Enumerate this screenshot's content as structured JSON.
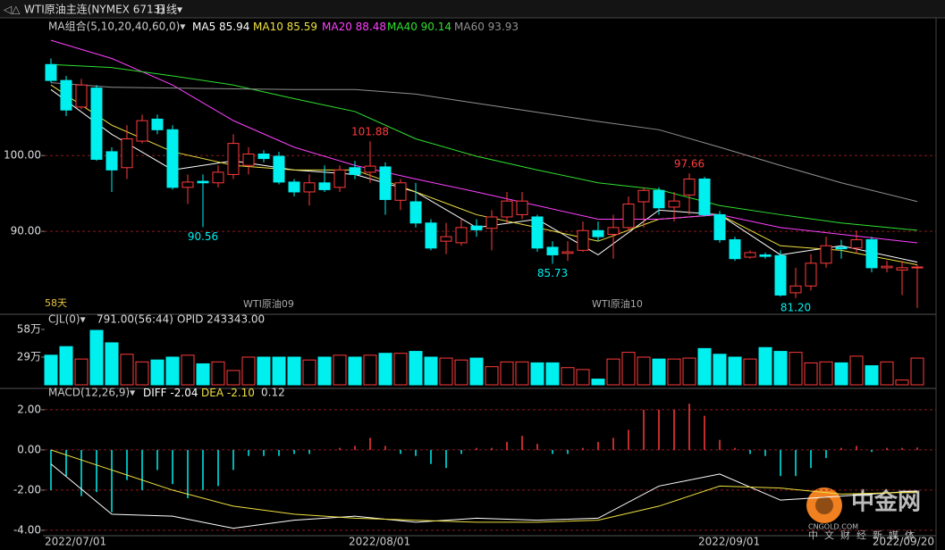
{
  "header": {
    "title": "WTI原油主连(NYMEX 6713)",
    "period": "日线▾"
  },
  "watermark": {
    "brand": "中金网",
    "site": "CNGOLD.COM",
    "slogan": "中文财经新媒体"
  },
  "chart_data": [
    {
      "type": "candlestick",
      "title": "MA组合(5,10,20,40,60,0)▾",
      "categories": [
        "2022/07/01",
        null,
        null,
        null,
        null,
        null,
        null,
        null,
        null,
        null,
        null,
        null,
        null,
        null,
        null,
        null,
        null,
        null,
        null,
        null,
        "2022/08/01",
        null,
        null,
        null,
        null,
        null,
        null,
        null,
        null,
        null,
        null,
        null,
        null,
        null,
        null,
        null,
        null,
        null,
        null,
        null,
        null,
        null,
        null,
        "2022/09/01",
        null,
        null,
        null,
        null,
        null,
        null,
        null,
        null,
        null,
        null,
        null,
        null,
        null,
        "2022/09/20"
      ],
      "open": [
        112.0,
        109.9,
        106.4,
        108.9,
        100.5,
        98.4,
        101.9,
        104.8,
        103.4,
        95.8,
        96.6,
        96.4,
        97.5,
        98.7,
        100.2,
        99.9,
        96.5,
        95.2,
        96.4,
        95.8,
        98.4,
        97.8,
        98.5,
        94.1,
        93.9,
        91.1,
        88.7,
        88.5,
        90.7,
        90.4,
        91.9,
        92.2,
        91.9,
        87.9,
        87.1,
        87.5,
        90.1,
        89.6,
        90.5,
        93.9,
        95.4,
        93.2,
        94.8,
        96.9,
        92.2,
        88.9,
        86.6,
        86.9,
        86.8,
        81.9,
        82.8,
        85.8,
        87.9,
        87.8,
        88.9,
        85.2,
        84.9,
        85.2
      ],
      "high": [
        112.8,
        110.5,
        110.1,
        109.3,
        101.1,
        104.0,
        105.4,
        105.4,
        104.0,
        97.5,
        97.5,
        98.7,
        102.8,
        101.1,
        100.7,
        100.5,
        96.9,
        97.5,
        98.7,
        98.7,
        99.3,
        101.88,
        99.1,
        96.9,
        96.4,
        91.6,
        91.1,
        91.6,
        91.6,
        92.8,
        95.2,
        95.2,
        92.2,
        88.7,
        88.7,
        91.3,
        91.3,
        92.2,
        94.6,
        95.8,
        95.8,
        95.2,
        97.66,
        97.2,
        92.7,
        89.3,
        87.5,
        87.2,
        87.5,
        85.2,
        87.0,
        89.3,
        88.9,
        90.1,
        89.3,
        86.1,
        86.1,
        85.6
      ],
      "low": [
        109.6,
        105.2,
        106.1,
        99.3,
        95.2,
        96.9,
        101.6,
        102.8,
        95.5,
        93.6,
        90.56,
        95.8,
        96.9,
        97.5,
        99.1,
        96.2,
        94.6,
        93.4,
        95.2,
        95.2,
        96.9,
        96.4,
        92.2,
        92.8,
        90.5,
        87.5,
        87.0,
        88.1,
        89.3,
        87.5,
        91.1,
        91.6,
        87.3,
        85.73,
        86.1,
        87.3,
        88.7,
        86.4,
        90.1,
        90.5,
        92.2,
        91.3,
        92.2,
        92.0,
        88.5,
        86.1,
        86.4,
        86.4,
        81.4,
        81.2,
        82.2,
        85.2,
        86.4,
        87.1,
        84.6,
        84.6,
        81.6,
        79.9
      ],
      "close": [
        109.9,
        106.0,
        109.3,
        99.5,
        98.1,
        102.2,
        104.6,
        103.4,
        95.8,
        96.5,
        96.4,
        97.8,
        101.6,
        100.2,
        99.6,
        96.5,
        95.2,
        96.4,
        95.5,
        98.1,
        97.5,
        98.6,
        94.2,
        96.4,
        91.1,
        87.8,
        89.3,
        90.5,
        90.2,
        91.9,
        94.0,
        94.0,
        87.8,
        86.9,
        87.3,
        90.1,
        89.3,
        90.5,
        93.6,
        95.4,
        93.1,
        94.0,
        96.9,
        92.2,
        88.9,
        86.4,
        87.2,
        86.7,
        81.6,
        82.8,
        85.8,
        88.1,
        87.7,
        88.9,
        85.2,
        85.4,
        85.2,
        85.3
      ],
      "high_labels": [
        null,
        null,
        null,
        null,
        null,
        null,
        null,
        null,
        null,
        null,
        null,
        null,
        null,
        null,
        null,
        null,
        null,
        null,
        null,
        null,
        null,
        "101.88",
        null,
        null,
        null,
        null,
        null,
        null,
        null,
        null,
        null,
        null,
        null,
        null,
        null,
        null,
        null,
        null,
        null,
        null,
        null,
        null,
        "97.66",
        null,
        null,
        null,
        null,
        null,
        null,
        null,
        null,
        null,
        null,
        null,
        null,
        null,
        null,
        null
      ],
      "low_labels": [
        null,
        null,
        null,
        null,
        null,
        null,
        null,
        null,
        null,
        null,
        "90.56",
        null,
        null,
        null,
        null,
        null,
        null,
        null,
        null,
        null,
        null,
        null,
        null,
        null,
        null,
        null,
        null,
        null,
        null,
        null,
        null,
        null,
        null,
        "85.73",
        null,
        null,
        null,
        null,
        null,
        null,
        null,
        null,
        null,
        null,
        null,
        null,
        null,
        null,
        null,
        "81.20",
        null,
        null,
        null,
        null,
        null,
        null,
        null,
        null
      ],
      "up_color": "#ff3b3b",
      "down_color": "#00f0f0",
      "ylim": [
        79.3,
        115.8
      ],
      "yticks": [
        {
          "value": 90,
          "label": "90.00"
        },
        {
          "value": 100,
          "label": "100.00"
        }
      ],
      "grid": true,
      "notes": [
        "58天",
        "WTI原油09",
        "WTI原油10"
      ],
      "lines": [
        {
          "name": "MA5",
          "value_label": "85.94",
          "color": "#ffffff",
          "x": [
            0,
            4,
            8,
            12,
            16,
            20,
            24,
            28,
            32,
            36,
            40,
            44,
            48,
            52,
            57
          ],
          "values": [
            108.7,
            102.8,
            98.1,
            99.3,
            98.1,
            97.5,
            95.2,
            90.5,
            91.6,
            86.9,
            92.8,
            92.2,
            86.9,
            88.1,
            85.94
          ]
        },
        {
          "name": "MA10",
          "value_label": "85.59",
          "color": "#f0e040",
          "x": [
            0,
            4,
            8,
            12,
            16,
            20,
            24,
            28,
            32,
            36,
            40,
            44,
            48,
            52,
            57
          ],
          "values": [
            109.3,
            104.0,
            100.5,
            98.7,
            98.1,
            98.1,
            95.2,
            92.2,
            90.5,
            88.7,
            91.6,
            92.2,
            88.1,
            87.5,
            85.59
          ]
        },
        {
          "name": "MA20",
          "value_label": "88.48",
          "color": "#ff40ff",
          "x": [
            0,
            4,
            8,
            12,
            16,
            20,
            24,
            28,
            32,
            36,
            40,
            44,
            48,
            52,
            57
          ],
          "values": [
            115.2,
            112.8,
            109.3,
            104.6,
            101.1,
            98.7,
            96.9,
            95.2,
            93.4,
            91.6,
            91.6,
            92.2,
            90.5,
            89.6,
            88.48
          ]
        },
        {
          "name": "MA40",
          "value_label": "90.14",
          "color": "#30e030",
          "x": [
            0,
            4,
            8,
            12,
            16,
            20,
            24,
            28,
            32,
            36,
            40,
            44,
            48,
            52,
            57
          ],
          "values": [
            112.0,
            111.6,
            110.5,
            109.3,
            107.5,
            105.8,
            102.2,
            99.9,
            98.1,
            96.4,
            95.5,
            93.4,
            92.2,
            91.1,
            90.14
          ]
        },
        {
          "name": "MA60",
          "value_label": "93.93",
          "color": "#909090",
          "x": [
            0,
            4,
            8,
            12,
            16,
            20,
            24,
            28,
            32,
            36,
            40,
            44,
            48,
            52,
            57
          ],
          "values": [
            109.6,
            109.0,
            108.9,
            108.8,
            108.7,
            108.7,
            108.1,
            106.9,
            105.7,
            104.5,
            103.4,
            101.1,
            98.7,
            96.4,
            93.93
          ]
        }
      ]
    },
    {
      "type": "volume",
      "title": "CJL(0)▾",
      "info": [
        "791.00(56:44)",
        "OPID 243343.00"
      ],
      "values": [
        31,
        40,
        27,
        57,
        44,
        32,
        24,
        26,
        29,
        31,
        22,
        24,
        15,
        29,
        29,
        29,
        29,
        26,
        29,
        31,
        29,
        31,
        33,
        33,
        35,
        29,
        28,
        26,
        28,
        19,
        24,
        24,
        23,
        23,
        18,
        16,
        6,
        27,
        34,
        29,
        27,
        27,
        28,
        38,
        32,
        29,
        27,
        39,
        35,
        34,
        23,
        24,
        23,
        30,
        20,
        24,
        5,
        28
      ],
      "ylim": [
        0,
        72
      ],
      "yticks": [
        {
          "value": 58,
          "label": "58万"
        },
        {
          "value": 29,
          "label": "29万"
        }
      ],
      "grid": false
    },
    {
      "type": "macd",
      "title": "MACD(12,26,9)▾",
      "last_label": "0.12",
      "values": [
        -2.0,
        -1.3,
        -2.3,
        -2.1,
        -3.1,
        -1.5,
        -2.0,
        -1.0,
        -1.7,
        -2.4,
        -2.0,
        -1.8,
        -1.0,
        -0.3,
        -0.3,
        -0.3,
        -0.2,
        -0.2,
        0.0,
        0.1,
        0.2,
        0.6,
        0.2,
        -0.2,
        -0.3,
        -0.7,
        -0.9,
        -0.2,
        0.1,
        0.1,
        0.4,
        0.7,
        0.3,
        -0.2,
        -0.2,
        0.1,
        0.4,
        0.6,
        1.0,
        2.0,
        2.0,
        2.0,
        2.3,
        1.7,
        0.5,
        0.1,
        -0.2,
        -0.3,
        -1.3,
        -1.3,
        -0.9,
        -0.4,
        0.1,
        0.2,
        -0.1,
        0.1,
        0.1,
        0.12
      ],
      "ylim": [
        -4.27,
        2.84
      ],
      "yticks": [
        {
          "value": 2,
          "label": "2.00"
        },
        {
          "value": 0,
          "label": "0.00"
        },
        {
          "value": -2,
          "label": "-2.00"
        },
        {
          "value": -4,
          "label": "-4.00"
        }
      ],
      "grid": true,
      "lines": [
        {
          "name": "DIFF",
          "value_label": "-2.04",
          "color": "#ffffff",
          "x": [
            0,
            4,
            8,
            12,
            16,
            20,
            24,
            28,
            32,
            36,
            40,
            44,
            48,
            52,
            57
          ],
          "values": [
            -0.7,
            -3.2,
            -3.3,
            -3.9,
            -3.5,
            -3.3,
            -3.6,
            -3.4,
            -3.5,
            -3.4,
            -1.8,
            -1.2,
            -2.5,
            -2.3,
            -2.04
          ]
        },
        {
          "name": "DEA",
          "value_label": "-2.10",
          "color": "#f0e040",
          "x": [
            0,
            4,
            8,
            12,
            16,
            20,
            24,
            28,
            32,
            36,
            40,
            44,
            48,
            52,
            57
          ],
          "values": [
            0.0,
            -1.0,
            -2.0,
            -2.8,
            -3.2,
            -3.4,
            -3.5,
            -3.6,
            -3.6,
            -3.5,
            -2.8,
            -1.8,
            -1.9,
            -2.2,
            -2.1
          ]
        }
      ]
    }
  ]
}
